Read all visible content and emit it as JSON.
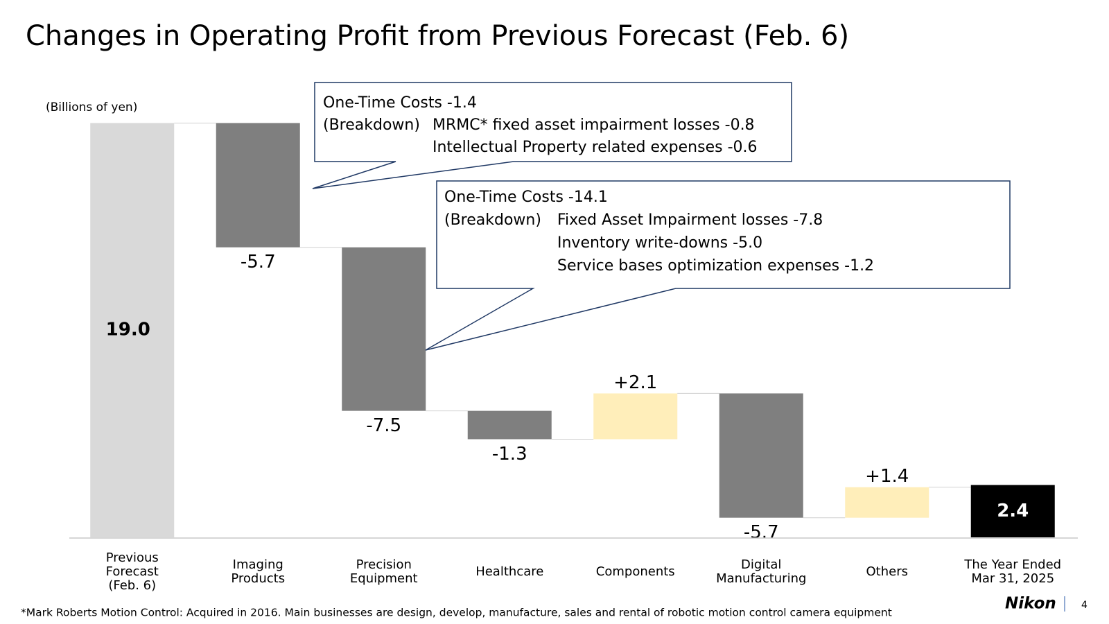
{
  "chart_data": {
    "type": "waterfall",
    "title": "Changes in Operating Profit from Previous Forecast (Feb. 6)",
    "unit_label": "(Billions of yen)",
    "categories": [
      "Previous\nForecast\n(Feb. 6)",
      "Imaging\nProducts",
      "Precision\nEquipment",
      "Healthcare",
      "Components",
      "Digital\nManufacturing",
      "Others",
      "The Year Ended\nMar 31, 2025"
    ],
    "values": [
      19.0,
      -5.7,
      -7.5,
      -1.3,
      2.1,
      -5.7,
      1.4,
      2.4
    ],
    "value_labels": [
      "19.0",
      "-5.7",
      "-7.5",
      "-1.3",
      "+2.1",
      "-5.7",
      "+1.4",
      "2.4"
    ],
    "measure": [
      "absolute",
      "relative",
      "relative",
      "relative",
      "relative",
      "relative",
      "relative",
      "total"
    ],
    "colors": {
      "absolute": "#d9d9d9",
      "decrease": "#7f7f7f",
      "increase": "#ffeeba",
      "total": "#000000"
    },
    "ylim": [
      0,
      20
    ],
    "annotations": [
      {
        "title": "One-Time Costs  -1.4",
        "breakdown_label": "(Breakdown)",
        "items": [
          "MRMC* fixed asset impairment losses  -0.8",
          "Intellectual Property related expenses  -0.6"
        ]
      },
      {
        "title": "One-Time Costs  -14.1",
        "breakdown_label": "(Breakdown)",
        "items": [
          "Fixed Asset Impairment losses  -7.8",
          "Inventory write-downs -5.0",
          "Service bases optimization expenses -1.2"
        ]
      }
    ],
    "footnote": "*Mark Roberts Motion Control: Acquired in 2016. Main businesses are design, develop, manufacture, sales and rental of robotic motion control camera equipment",
    "brand": "Nikon",
    "page_number": "4"
  }
}
